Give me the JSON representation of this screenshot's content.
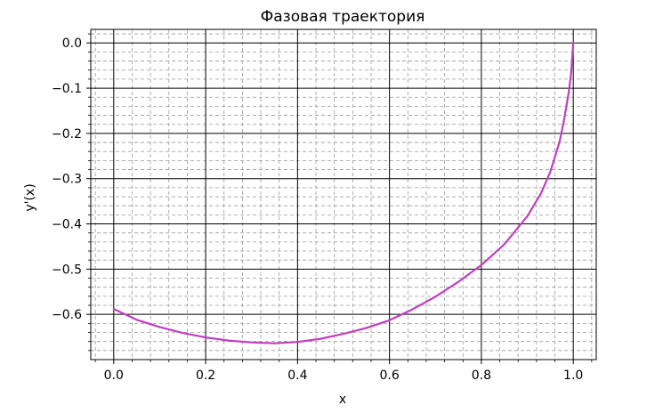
{
  "chart_data": {
    "type": "line",
    "title": "Фазовая траектория",
    "xlabel": "x",
    "ylabel": "y'(x)",
    "xlim": [
      -0.05,
      1.05
    ],
    "ylim": [
      -0.7,
      0.03
    ],
    "xticks": [
      0.0,
      0.2,
      0.4,
      0.6,
      0.8,
      1.0
    ],
    "xtick_labels": [
      "0.0",
      "0.2",
      "0.4",
      "0.6",
      "0.8",
      "1.0"
    ],
    "yticks": [
      0.0,
      -0.1,
      -0.2,
      -0.3,
      -0.4,
      -0.5,
      -0.6
    ],
    "ytick_labels": [
      "0.0",
      "−0.1",
      "−0.2",
      "−0.3",
      "−0.4",
      "−0.5",
      "−0.6"
    ],
    "grid": true,
    "minor_grid": true,
    "line_color": "#bf40bf",
    "series": [
      {
        "x": [
          0.0,
          0.05,
          0.1,
          0.15,
          0.2,
          0.25,
          0.3,
          0.35,
          0.4,
          0.45,
          0.5,
          0.55,
          0.6,
          0.65,
          0.7,
          0.75,
          0.8,
          0.85,
          0.9,
          0.93,
          0.95,
          0.97,
          0.98,
          0.99,
          0.995,
          1.0
        ],
        "y": [
          -0.588,
          -0.612,
          -0.628,
          -0.641,
          -0.651,
          -0.658,
          -0.662,
          -0.664,
          -0.661,
          -0.654,
          -0.643,
          -0.63,
          -0.613,
          -0.589,
          -0.561,
          -0.528,
          -0.491,
          -0.445,
          -0.383,
          -0.332,
          -0.285,
          -0.219,
          -0.17,
          -0.11,
          -0.07,
          0.0
        ]
      }
    ]
  }
}
